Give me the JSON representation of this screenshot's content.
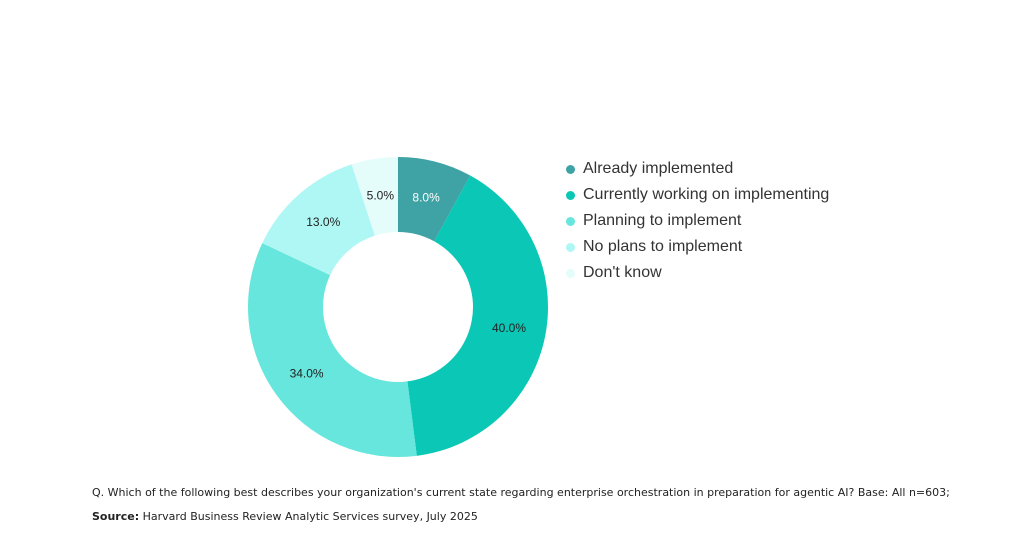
{
  "chart_data": {
    "type": "pie",
    "donut": true,
    "categories": [
      "Already implemented",
      "Currently working on implementing",
      "Planning to implement",
      "No plans to implement",
      "Don't know"
    ],
    "values": [
      8.0,
      40.0,
      34.0,
      13.0,
      5.0
    ],
    "labels": [
      "8.0%",
      "40.0%",
      "34.0%",
      "13.0%",
      "5.0%"
    ],
    "colors": [
      "#3fa3a5",
      "#0bc7b5",
      "#66e6dc",
      "#aef7f4",
      "#e4fcfa"
    ],
    "label_colors": [
      "#ffffff",
      "#222222",
      "#222222",
      "#222222",
      "#222222"
    ],
    "legend_position": "right"
  },
  "footer": {
    "question": "Q. Which of the following best describes your organization's current state regarding enterprise orchestration in preparation for agentic AI?  Base: All n=603;",
    "source_label": "Source:",
    "source_text": " Harvard Business Review Analytic Services survey, July 2025"
  }
}
